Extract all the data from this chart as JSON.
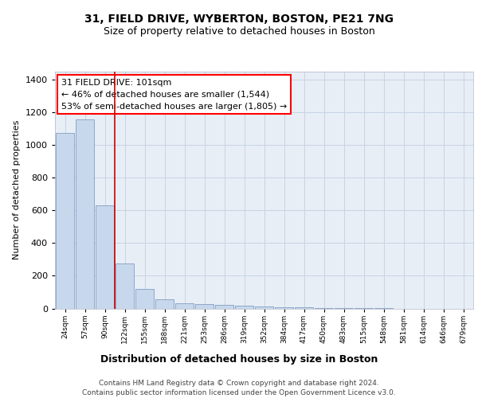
{
  "title1": "31, FIELD DRIVE, WYBERTON, BOSTON, PE21 7NG",
  "title2": "Size of property relative to detached houses in Boston",
  "xlabel": "Distribution of detached houses by size in Boston",
  "ylabel": "Number of detached properties",
  "bin_labels": [
    "24sqm",
    "57sqm",
    "90sqm",
    "122sqm",
    "155sqm",
    "188sqm",
    "221sqm",
    "253sqm",
    "286sqm",
    "319sqm",
    "352sqm",
    "384sqm",
    "417sqm",
    "450sqm",
    "483sqm",
    "515sqm",
    "548sqm",
    "581sqm",
    "614sqm",
    "646sqm",
    "679sqm"
  ],
  "bar_values": [
    1075,
    1160,
    630,
    275,
    120,
    55,
    30,
    25,
    20,
    15,
    10,
    8,
    5,
    3,
    2,
    1,
    1,
    0,
    0,
    0,
    0
  ],
  "bar_color": "#c8d8ec",
  "bar_edge_color": "#7090b8",
  "grid_color": "#c8d4e4",
  "background_color": "#e8eef6",
  "annotation_text": "31 FIELD DRIVE: 101sqm\n← 46% of detached houses are smaller (1,544)\n53% of semi-detached houses are larger (1,805) →",
  "vline_x": 2.5,
  "vline_color": "#cc0000",
  "ylim": [
    0,
    1450
  ],
  "yticks": [
    0,
    200,
    400,
    600,
    800,
    1000,
    1200,
    1400
  ],
  "footer": "Contains HM Land Registry data © Crown copyright and database right 2024.\nContains public sector information licensed under the Open Government Licence v3.0.",
  "title1_fontsize": 10,
  "title2_fontsize": 9,
  "xlabel_fontsize": 9,
  "ylabel_fontsize": 8,
  "annot_fontsize": 8,
  "footer_fontsize": 6.5
}
